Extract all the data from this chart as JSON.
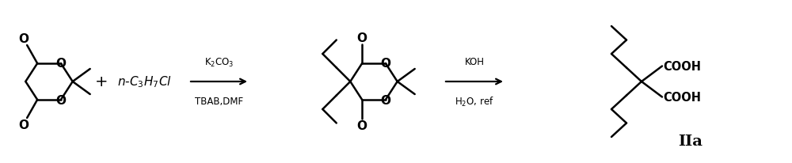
{
  "bg_color": "#ffffff",
  "line_color": "#000000",
  "arrow_color": "#000000",
  "lw": 1.8,
  "figsize": [
    10.0,
    2.07
  ],
  "dpi": 100,
  "step1_reagent_top": "K$_2$CO$_3$",
  "step1_reagent_bot": "TBAB,DMF",
  "step2_reagent_top": "KOH",
  "step2_reagent_bot": "H$_2$O, ref",
  "label_IIa": "IIa",
  "reagent_fontsize": 8.5,
  "label_fontsize": 14,
  "plus_fontsize": 14,
  "haloalkane_label": "$n$-C$_3$H$_7$Cl",
  "haloalkane_fontsize": 11,
  "O_fontsize": 11,
  "COOH_fontsize": 10.5
}
